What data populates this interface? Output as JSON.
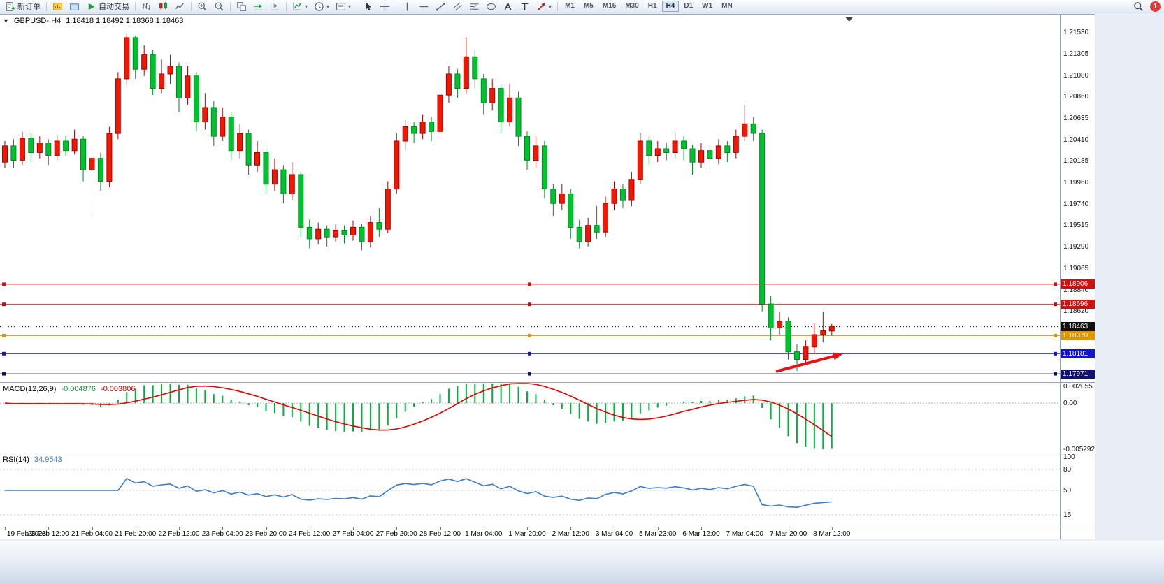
{
  "toolbar": {
    "items": [
      {
        "name": "new-order-button",
        "icon": "new-order-icon",
        "label": "新订单"
      },
      {
        "sep": true
      },
      {
        "name": "charts-button",
        "icon": "chart-window-icon"
      },
      {
        "name": "profiles-button",
        "icon": "profiles-icon"
      },
      {
        "name": "autotrading-button",
        "icon": "play-icon",
        "label": "自动交易"
      },
      {
        "sep": true
      },
      {
        "name": "bar-chart-button",
        "icon": "ohlc-bars-icon"
      },
      {
        "name": "candlestick-chart-button",
        "icon": "candlesticks-icon"
      },
      {
        "name": "line-chart-button",
        "icon": "line-chart-icon"
      },
      {
        "sep": true
      },
      {
        "name": "zoom-in-button",
        "icon": "zoom-in-icon"
      },
      {
        "name": "zoom-out-button",
        "icon": "zoom-out-icon"
      },
      {
        "sep": true
      },
      {
        "name": "tile-windows-button",
        "icon": "tile-windows-icon"
      },
      {
        "name": "auto-scroll-button",
        "icon": "auto-scroll-icon"
      },
      {
        "name": "chart-shift-button",
        "icon": "chart-shift-icon"
      },
      {
        "sep": true
      },
      {
        "name": "indicators-button",
        "icon": "indicators-icon",
        "caret": true
      },
      {
        "name": "periods-button",
        "icon": "clock-icon",
        "caret": true
      },
      {
        "name": "templates-button",
        "icon": "template-icon",
        "caret": true
      },
      {
        "sep": true
      },
      {
        "name": "cursor-button",
        "icon": "cursor-icon"
      },
      {
        "name": "crosshair-button",
        "icon": "crosshair-icon"
      },
      {
        "sep": true
      },
      {
        "name": "vertical-line-button",
        "icon": "vertical-line-icon"
      },
      {
        "name": "horizontal-line-button",
        "icon": "horizontal-line-icon"
      },
      {
        "name": "trendline-button",
        "icon": "trendline-icon"
      },
      {
        "name": "channel-button",
        "icon": "channel-icon"
      },
      {
        "name": "fibonacci-button",
        "icon": "fibonacci-icon"
      },
      {
        "name": "shapes-button",
        "icon": "ellipse-icon"
      },
      {
        "name": "text-button",
        "icon": "text-a-icon"
      },
      {
        "name": "label-button",
        "icon": "text-t-icon"
      },
      {
        "name": "arrows-button",
        "icon": "arrow-symbol-icon",
        "caret": true
      },
      {
        "sep": true
      }
    ],
    "timeframes": [
      "M1",
      "M5",
      "M15",
      "M30",
      "H1",
      "H4",
      "D1",
      "W1",
      "MN"
    ],
    "active_timeframe": "H4",
    "notification_count": "1"
  },
  "chart": {
    "symbol_label": "GBPUSD-,H4",
    "ohlc_label": "1.18418 1.18492 1.18368 1.18463",
    "price_axis_ticks": [
      "1.21530",
      "1.21305",
      "1.21080",
      "1.20860",
      "1.20635",
      "1.20410",
      "1.20185",
      "1.19960",
      "1.19740",
      "1.19515",
      "1.19290",
      "1.19065",
      "1.18840",
      "1.18620"
    ],
    "price_tags": [
      {
        "label": "1.18906",
        "price": 1.18906,
        "color": "#cc1111",
        "line": "solid",
        "handles": true
      },
      {
        "label": "1.18696",
        "price": 1.18696,
        "color": "#cc1111",
        "line": "solid",
        "handles": true
      },
      {
        "label": "1.18463",
        "price": 1.18463,
        "color": "#111111",
        "line": "dotted",
        "handles": false
      },
      {
        "label": "1.18370",
        "price": 1.1837,
        "color": "#dd9600",
        "line": "solid",
        "handles": true
      },
      {
        "label": "1.18181",
        "price": 1.18181,
        "color": "#1414cc",
        "line": "solid",
        "handles": true
      },
      {
        "label": "1.17971",
        "price": 1.17971,
        "color": "#10106e",
        "line": "solid",
        "handles": true
      }
    ],
    "annotation_arrow": {
      "color": "#e81010",
      "from": {
        "i": 88.6,
        "p": 1.17995
      },
      "to": {
        "i": 96.3,
        "p": 1.1818
      }
    },
    "shift_marker_i": 97.0
  },
  "macd": {
    "title": "MACD(12,26,9)",
    "value_main": "-0.004876",
    "value_signal": "-0.003806",
    "axis_labels": [
      "0.002055",
      "0.00",
      "-0.005292"
    ],
    "params": {
      "fast": 12,
      "slow": 26,
      "signal": 9
    },
    "hist_color": "#00b23c",
    "signal_color": "#e60000"
  },
  "rsi": {
    "title": "RSI(14)",
    "value": "34.9543",
    "period": 14,
    "axis_labels": [
      "100",
      "80",
      "50",
      "15"
    ],
    "levels": [
      80,
      50,
      15
    ],
    "line_color": "#3a7bd5"
  },
  "chart_data": {
    "type": "candlestick",
    "symbol": "GBPUSD-",
    "timeframe": "H4",
    "ohlc_format": [
      "open",
      "high",
      "low",
      "close"
    ],
    "up_color": "#f01800",
    "down_color": "#00c22e",
    "y_axis": {
      "min": 1.17884,
      "max": 1.2172
    },
    "candles": [
      [
        1.2018,
        1.204,
        1.2012,
        1.2035
      ],
      [
        1.2035,
        1.2042,
        1.2012,
        1.202
      ],
      [
        1.202,
        1.205,
        1.2015,
        1.2043
      ],
      [
        1.2043,
        1.2048,
        1.2018,
        1.2028
      ],
      [
        1.2028,
        1.2045,
        1.2022,
        1.2038
      ],
      [
        1.2038,
        1.2042,
        1.2015,
        1.2025
      ],
      [
        1.2025,
        1.2047,
        1.202,
        1.204
      ],
      [
        1.204,
        1.2046,
        1.2024,
        1.203
      ],
      [
        1.203,
        1.2052,
        1.2026,
        1.2042
      ],
      [
        1.2042,
        1.2045,
        1.1998,
        1.201
      ],
      [
        1.201,
        1.203,
        1.196,
        1.2022
      ],
      [
        1.2022,
        1.2028,
        1.1988,
        1.1998
      ],
      [
        1.1998,
        1.2055,
        1.1992,
        1.2048
      ],
      [
        1.2048,
        1.2112,
        1.2042,
        1.2105
      ],
      [
        1.2105,
        1.2153,
        1.2098,
        1.2148
      ],
      [
        1.2148,
        1.215,
        1.2105,
        1.2115
      ],
      [
        1.2115,
        1.214,
        1.2108,
        1.213
      ],
      [
        1.213,
        1.2135,
        1.2088,
        1.2095
      ],
      [
        1.2095,
        1.2125,
        1.209,
        1.211
      ],
      [
        1.211,
        1.213,
        1.21,
        1.2118
      ],
      [
        1.2118,
        1.2122,
        1.207,
        1.2085
      ],
      [
        1.2085,
        1.2118,
        1.2078,
        1.2108
      ],
      [
        1.2108,
        1.2112,
        1.205,
        1.206
      ],
      [
        1.206,
        1.209,
        1.2052,
        1.2075
      ],
      [
        1.2075,
        1.2082,
        1.2035,
        1.2045
      ],
      [
        1.2045,
        1.2075,
        1.204,
        1.2065
      ],
      [
        1.2065,
        1.207,
        1.202,
        1.203
      ],
      [
        1.203,
        1.2058,
        1.2022,
        1.2048
      ],
      [
        1.2048,
        1.2052,
        1.2005,
        1.2015
      ],
      [
        1.2015,
        1.204,
        1.2008,
        1.2028
      ],
      [
        1.2028,
        1.2032,
        1.1985,
        1.1995
      ],
      [
        1.1995,
        1.2022,
        1.1988,
        1.201
      ],
      [
        1.201,
        1.2015,
        1.1975,
        1.1985
      ],
      [
        1.1985,
        1.2018,
        1.1978,
        1.2005
      ],
      [
        1.2005,
        1.2008,
        1.194,
        1.195
      ],
      [
        1.195,
        1.1958,
        1.1928,
        1.1938
      ],
      [
        1.1938,
        1.1955,
        1.1932,
        1.1948
      ],
      [
        1.1948,
        1.1952,
        1.193,
        1.194
      ],
      [
        1.194,
        1.1953,
        1.1935,
        1.1947
      ],
      [
        1.1947,
        1.1952,
        1.1933,
        1.1942
      ],
      [
        1.1942,
        1.1957,
        1.1936,
        1.195
      ],
      [
        1.195,
        1.1954,
        1.1926,
        1.1935
      ],
      [
        1.1935,
        1.1962,
        1.1929,
        1.1955
      ],
      [
        1.1955,
        1.197,
        1.194,
        1.1948
      ],
      [
        1.1948,
        1.1998,
        1.1944,
        1.199
      ],
      [
        1.199,
        1.2048,
        1.1985,
        1.204
      ],
      [
        1.204,
        1.2062,
        1.203,
        1.2055
      ],
      [
        1.2055,
        1.206,
        1.2038,
        1.2048
      ],
      [
        1.2048,
        1.2068,
        1.2042,
        1.206
      ],
      [
        1.206,
        1.2065,
        1.204,
        1.205
      ],
      [
        1.205,
        1.2095,
        1.2046,
        1.2088
      ],
      [
        1.2088,
        1.2118,
        1.208,
        1.211
      ],
      [
        1.211,
        1.2115,
        1.2085,
        1.2095
      ],
      [
        1.2095,
        1.2148,
        1.209,
        1.2128
      ],
      [
        1.2128,
        1.2135,
        1.2095,
        1.2105
      ],
      [
        1.2105,
        1.211,
        1.2068,
        1.208
      ],
      [
        1.208,
        1.2105,
        1.2072,
        1.2095
      ],
      [
        1.2095,
        1.2098,
        1.2048,
        1.206
      ],
      [
        1.206,
        1.21,
        1.2055,
        1.2085
      ],
      [
        1.2085,
        1.2092,
        1.2035,
        1.2045
      ],
      [
        1.2045,
        1.205,
        1.201,
        1.202
      ],
      [
        1.202,
        1.2045,
        1.2012,
        1.2035
      ],
      [
        1.2035,
        1.204,
        1.198,
        1.199
      ],
      [
        1.199,
        1.1995,
        1.1962,
        1.1975
      ],
      [
        1.1975,
        1.1995,
        1.1968,
        1.1985
      ],
      [
        1.1985,
        1.199,
        1.1938,
        1.195
      ],
      [
        1.195,
        1.1958,
        1.1928,
        1.1935
      ],
      [
        1.1935,
        1.196,
        1.193,
        1.1952
      ],
      [
        1.1952,
        1.1972,
        1.1938,
        1.1945
      ],
      [
        1.1945,
        1.1982,
        1.194,
        1.1975
      ],
      [
        1.1975,
        1.1998,
        1.1968,
        1.199
      ],
      [
        1.199,
        1.1995,
        1.197,
        1.1978
      ],
      [
        1.1978,
        1.2008,
        1.1972,
        1.2
      ],
      [
        1.2,
        1.2048,
        1.1995,
        1.204
      ],
      [
        1.204,
        1.2045,
        1.2015,
        1.2025
      ],
      [
        1.2025,
        1.204,
        1.2018,
        1.2032
      ],
      [
        1.2032,
        1.2038,
        1.202,
        1.2028
      ],
      [
        1.2028,
        1.2048,
        1.2022,
        1.204
      ],
      [
        1.204,
        1.2045,
        1.202,
        1.2032
      ],
      [
        1.2032,
        1.2036,
        1.2005,
        1.2018
      ],
      [
        1.2018,
        1.2038,
        1.2012,
        1.203
      ],
      [
        1.203,
        1.2035,
        1.201,
        1.2022
      ],
      [
        1.2022,
        1.2042,
        1.2016,
        1.2035
      ],
      [
        1.2035,
        1.204,
        1.2018,
        1.2028
      ],
      [
        1.2028,
        1.2052,
        1.2022,
        1.2045
      ],
      [
        1.2045,
        1.2078,
        1.204,
        1.2058
      ],
      [
        1.2058,
        1.2065,
        1.204,
        1.2048
      ],
      [
        1.2048,
        1.2052,
        1.1862,
        1.187
      ],
      [
        1.187,
        1.1878,
        1.1832,
        1.1845
      ],
      [
        1.1845,
        1.1862,
        1.1838,
        1.1852
      ],
      [
        1.1852,
        1.1856,
        1.1812,
        1.182
      ],
      [
        1.182,
        1.1828,
        1.18,
        1.1812
      ],
      [
        1.1812,
        1.1832,
        1.1806,
        1.1825
      ],
      [
        1.1825,
        1.185,
        1.1818,
        1.1838
      ],
      [
        1.1838,
        1.1862,
        1.183,
        1.1842
      ],
      [
        1.18418,
        1.18492,
        1.18368,
        1.18463
      ]
    ],
    "time_labels": [
      {
        "i": 0,
        "t": "19 Feb 2023"
      },
      {
        "i": 5,
        "t": "20 Feb 12:00"
      },
      {
        "i": 10,
        "t": "21 Feb 04:00"
      },
      {
        "i": 15,
        "t": "21 Feb 20:00"
      },
      {
        "i": 20,
        "t": "22 Feb 12:00"
      },
      {
        "i": 25,
        "t": "23 Feb 04:00"
      },
      {
        "i": 30,
        "t": "23 Feb 20:00"
      },
      {
        "i": 35,
        "t": "24 Feb 12:00"
      },
      {
        "i": 40,
        "t": "27 Feb 04:00"
      },
      {
        "i": 45,
        "t": "27 Feb 20:00"
      },
      {
        "i": 50,
        "t": "28 Feb 12:00"
      },
      {
        "i": 55,
        "t": "1 Mar 04:00"
      },
      {
        "i": 60,
        "t": "1 Mar 20:00"
      },
      {
        "i": 65,
        "t": "2 Mar 12:00"
      },
      {
        "i": 70,
        "t": "3 Mar 04:00"
      },
      {
        "i": 75,
        "t": "5 Mar 23:00"
      },
      {
        "i": 80,
        "t": "6 Mar 12:00"
      },
      {
        "i": 85,
        "t": "7 Mar 04:00"
      },
      {
        "i": 90,
        "t": "7 Mar 20:00"
      },
      {
        "i": 95,
        "t": "8 Mar 12:00"
      }
    ]
  }
}
